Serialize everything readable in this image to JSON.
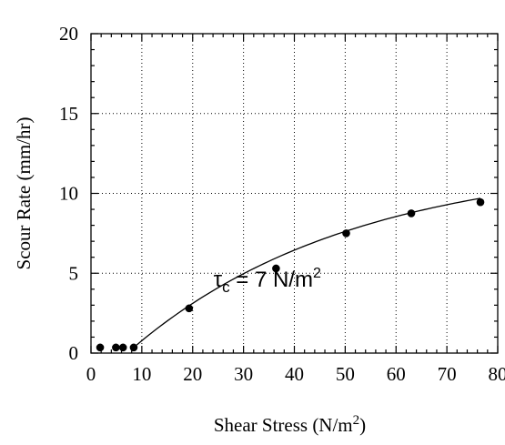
{
  "chart_data": {
    "type": "scatter",
    "xlabel": "Shear Stress (N/m",
    "xlabel_sup": "2",
    "xlabel_tail": ")",
    "ylabel": "Scour Rate (mm/hr)",
    "xlim": [
      0,
      80
    ],
    "ylim": [
      0,
      20
    ],
    "x_ticks": [
      0,
      10,
      20,
      30,
      40,
      50,
      60,
      70,
      80
    ],
    "y_ticks": [
      0,
      5,
      10,
      15,
      20
    ],
    "x_tick_labels": [
      "0",
      "10",
      "20",
      "30",
      "40",
      "50",
      "60",
      "70",
      "80"
    ],
    "y_tick_labels": [
      "0",
      "5",
      "10",
      "15",
      "20"
    ],
    "grid": true,
    "series": [
      {
        "type": "scatter",
        "x": [
          1.8,
          4.9,
          6.3,
          8.4,
          19.3,
          36.4,
          50.2,
          63.0,
          76.6
        ],
        "y": [
          0.35,
          0.35,
          0.35,
          0.35,
          2.8,
          5.3,
          7.5,
          8.75,
          9.45
        ]
      },
      {
        "type": "line",
        "fit": "exponential",
        "x_start": 8.4,
        "x_end": 76.6,
        "a": 11.8,
        "k": 0.023
      }
    ],
    "annotation": {
      "tau": "τ",
      "sub": "c",
      "mid": " = 7 N/m",
      "sup": "2",
      "x": 30,
      "y": 4.4
    }
  }
}
